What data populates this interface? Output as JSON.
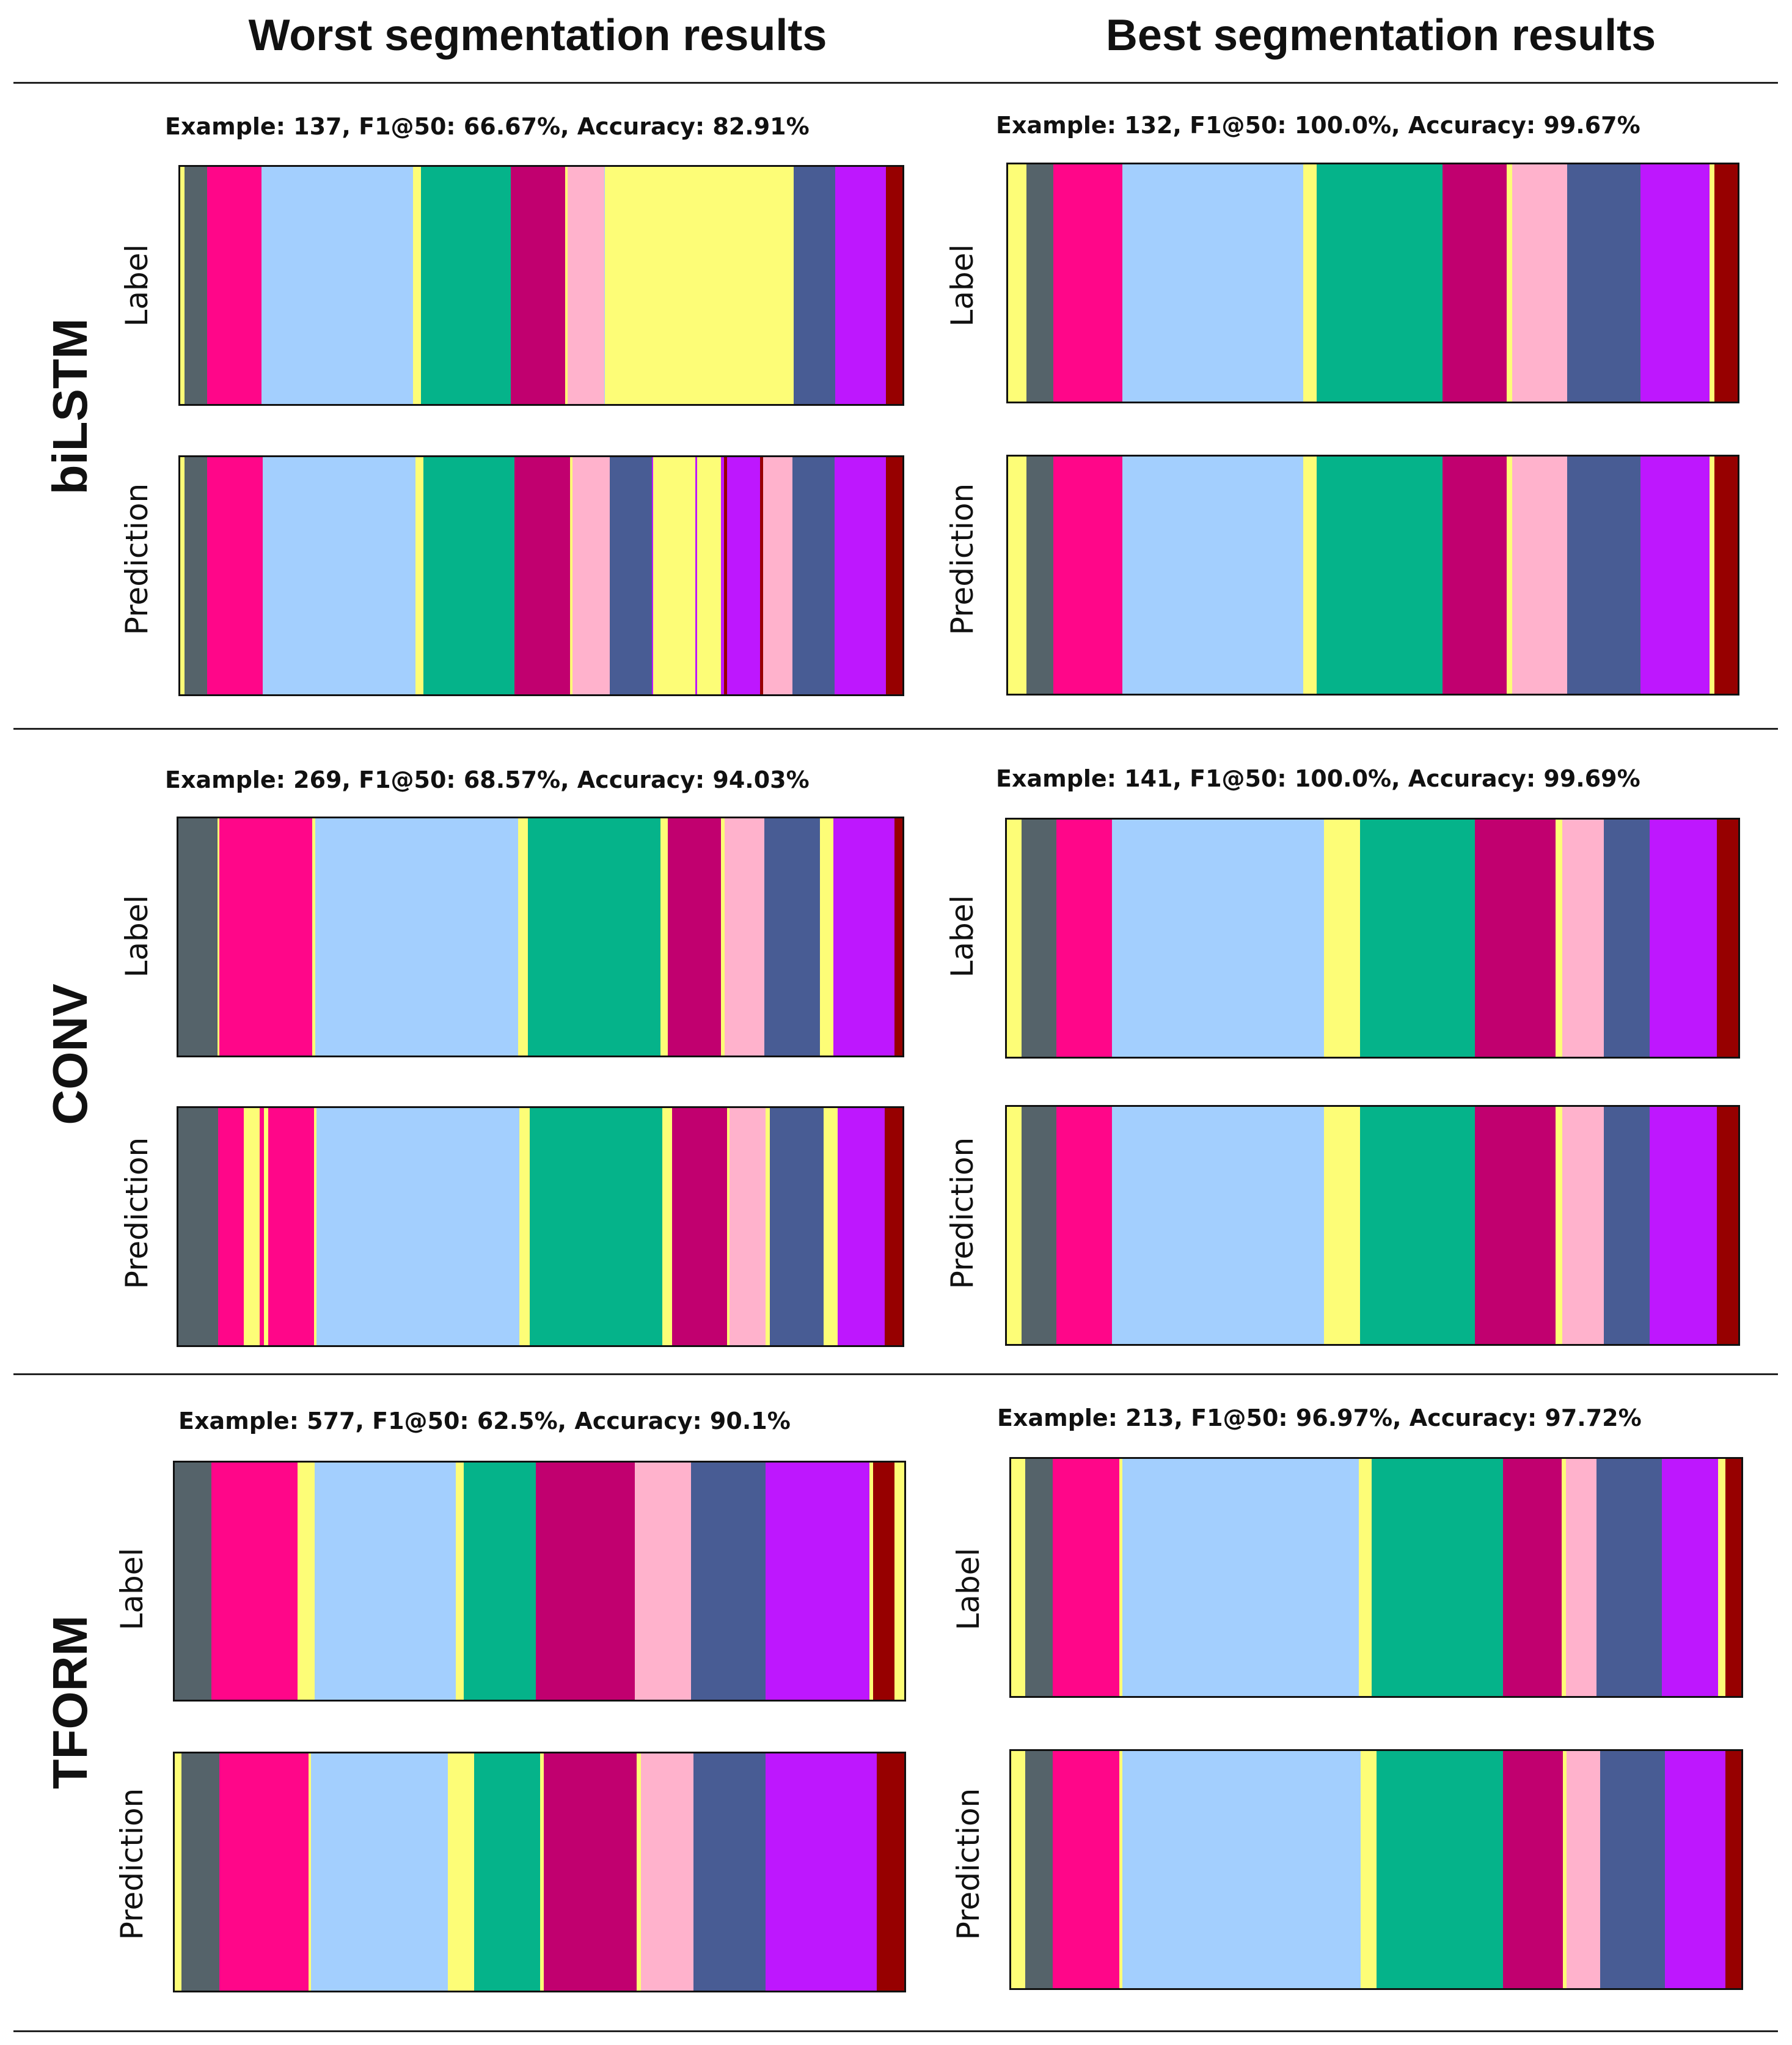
{
  "column_titles": {
    "worst": "Worst segmentation results",
    "best": "Best segmentation results"
  },
  "row_titles": {
    "bilstm": "biLSTM",
    "conv": "CONV",
    "tform": "TFORM"
  },
  "axis_labels": {
    "label": "Label",
    "prediction": "Prediction"
  },
  "colors": {
    "Y": "#fdfd77",
    "G": "#55636a",
    "M": "#ff0689",
    "B": "#a3cffe",
    "T": "#05b38a",
    "R": "#c1006f",
    "P": "#ffb2cc",
    "N": "#485c94",
    "V": "#be17fe",
    "D": "#970000"
  },
  "chart_data": [
    {
      "type": "segmentation",
      "model": "biLSTM",
      "group": "worst",
      "title": "Example: 137, F1@50: 66.67%, Accuracy: 82.91%",
      "example": 137,
      "f1_at_50": 66.67,
      "accuracy": 82.91,
      "label": [
        [
          "Y",
          0.6
        ],
        [
          "G",
          3.1
        ],
        [
          "M",
          7.6
        ],
        [
          "B",
          21
        ],
        [
          "Y",
          1.1
        ],
        [
          "T",
          12.5
        ],
        [
          "R",
          7.6
        ],
        [
          "Y",
          0.3
        ],
        [
          "P",
          5.1
        ],
        [
          "B",
          0.1
        ],
        [
          "Y",
          26.2
        ],
        [
          "N",
          5.8
        ],
        [
          "V",
          7
        ],
        [
          "D",
          2.3
        ]
      ],
      "prediction": [
        [
          "Y",
          0.6
        ],
        [
          "G",
          3.1
        ],
        [
          "M",
          7.6
        ],
        [
          "B",
          21
        ],
        [
          "Y",
          1.1
        ],
        [
          "T",
          12.5
        ],
        [
          "R",
          7.6
        ],
        [
          "Y",
          0.3
        ],
        [
          "P",
          5.1
        ],
        [
          "N",
          5.8
        ],
        [
          "V",
          0.2
        ],
        [
          "Y",
          5.8
        ],
        [
          "V",
          0.2
        ],
        [
          "Y",
          3.3
        ],
        [
          "V",
          0.4
        ],
        [
          "D",
          0.4
        ],
        [
          "V",
          4.6
        ],
        [
          "D",
          0.4
        ],
        [
          "P",
          4
        ],
        [
          "N",
          5.8
        ],
        [
          "V",
          7
        ],
        [
          "D",
          2.3
        ]
      ]
    },
    {
      "type": "segmentation",
      "model": "biLSTM",
      "group": "best",
      "title": "Example: 132, F1@50: 100.0%, Accuracy: 99.67%",
      "example": 132,
      "f1_at_50": 100.0,
      "accuracy": 99.67,
      "label": [
        [
          "Y",
          2.5
        ],
        [
          "G",
          3.7
        ],
        [
          "M",
          9.4
        ],
        [
          "B",
          24.7
        ],
        [
          "Y",
          1.8
        ],
        [
          "T",
          17.2
        ],
        [
          "R",
          8.8
        ],
        [
          "Y",
          0.7
        ],
        [
          "P",
          7.5
        ],
        [
          "N",
          10
        ],
        [
          "V",
          9.5
        ],
        [
          "Y",
          0.6
        ],
        [
          "D",
          3.2
        ]
      ],
      "prediction": [
        [
          "Y",
          2.5
        ],
        [
          "G",
          3.7
        ],
        [
          "M",
          9.4
        ],
        [
          "B",
          24.7
        ],
        [
          "Y",
          1.8
        ],
        [
          "T",
          17.2
        ],
        [
          "R",
          8.8
        ],
        [
          "Y",
          0.7
        ],
        [
          "P",
          7.5
        ],
        [
          "N",
          10
        ],
        [
          "V",
          9.5
        ],
        [
          "Y",
          0.6
        ],
        [
          "D",
          3.2
        ]
      ]
    },
    {
      "type": "segmentation",
      "model": "CONV",
      "group": "worst",
      "title": "Example: 269, F1@50: 68.57%, Accuracy: 94.03%",
      "example": 269,
      "f1_at_50": 68.57,
      "accuracy": 94.03,
      "label": [
        [
          "G",
          5.5
        ],
        [
          "Y",
          0.2
        ],
        [
          "M",
          13
        ],
        [
          "Y",
          0.4
        ],
        [
          "B",
          28.3
        ],
        [
          "Y",
          1.4
        ],
        [
          "T",
          18.5
        ],
        [
          "Y",
          1
        ],
        [
          "R",
          7.5
        ],
        [
          "Y",
          0.5
        ],
        [
          "P",
          5.5
        ],
        [
          "N",
          7.8
        ],
        [
          "Y",
          1.9
        ],
        [
          "V",
          8.5
        ],
        [
          "D",
          1.1
        ]
      ],
      "prediction": [
        [
          "G",
          5.5
        ],
        [
          "M",
          3.6
        ],
        [
          "Y",
          2.2
        ],
        [
          "M",
          0.6
        ],
        [
          "Y",
          0.6
        ],
        [
          "M",
          6.4
        ],
        [
          "Y",
          0.4
        ],
        [
          "B",
          28.3
        ],
        [
          "Y",
          1.4
        ],
        [
          "T",
          18.5
        ],
        [
          "Y",
          1.4
        ],
        [
          "R",
          7.6
        ],
        [
          "Y",
          0.4
        ],
        [
          "P",
          5
        ],
        [
          "Y",
          0.6
        ],
        [
          "N",
          7.5
        ],
        [
          "Y",
          2
        ],
        [
          "V",
          6.5
        ],
        [
          "D",
          2.5
        ]
      ]
    },
    {
      "type": "segmentation",
      "model": "CONV",
      "group": "best",
      "title": "Example: 141, F1@50: 100.0%, Accuracy: 99.69%",
      "example": 141,
      "f1_at_50": 100.0,
      "accuracy": 99.69,
      "label": [
        [
          "Y",
          2
        ],
        [
          "G",
          4.8
        ],
        [
          "M",
          7.6
        ],
        [
          "B",
          29
        ],
        [
          "Y",
          4.9
        ],
        [
          "T",
          15.7
        ],
        [
          "R",
          11
        ],
        [
          "Y",
          0.9
        ],
        [
          "P",
          5.7
        ],
        [
          "N",
          6.3
        ],
        [
          "V",
          9.2
        ],
        [
          "D",
          2.9
        ]
      ],
      "prediction": [
        [
          "Y",
          2
        ],
        [
          "G",
          4.8
        ],
        [
          "M",
          7.6
        ],
        [
          "B",
          29
        ],
        [
          "Y",
          4.9
        ],
        [
          "T",
          15.7
        ],
        [
          "R",
          11
        ],
        [
          "Y",
          0.9
        ],
        [
          "P",
          5.7
        ],
        [
          "N",
          6.3
        ],
        [
          "V",
          9.2
        ],
        [
          "D",
          2.9
        ]
      ]
    },
    {
      "type": "segmentation",
      "model": "TFORM",
      "group": "worst",
      "title": "Example: 577, F1@50: 62.5%, Accuracy: 90.1%",
      "example": 577,
      "f1_at_50": 62.5,
      "accuracy": 90.1,
      "label": [
        [
          "G",
          5
        ],
        [
          "M",
          11.8
        ],
        [
          "Y",
          2.4
        ],
        [
          "B",
          19.3
        ],
        [
          "Y",
          1.1
        ],
        [
          "T",
          9.9
        ],
        [
          "R",
          13.6
        ],
        [
          "P",
          7.7
        ],
        [
          "N",
          10.2
        ],
        [
          "V",
          14.2
        ],
        [
          "Y",
          0.5
        ],
        [
          "D",
          3
        ],
        [
          "Y",
          1.3
        ]
      ],
      "prediction": [
        [
          "Y",
          0.9
        ],
        [
          "G",
          5.2
        ],
        [
          "M",
          12.2
        ],
        [
          "Y",
          0.4
        ],
        [
          "B",
          18.7
        ],
        [
          "Y",
          3.6
        ],
        [
          "T",
          9.1
        ],
        [
          "Y",
          0.5
        ],
        [
          "R",
          12.7
        ],
        [
          "Y",
          0.6
        ],
        [
          "P",
          7.2
        ],
        [
          "N",
          9.9
        ],
        [
          "V",
          15.2
        ],
        [
          "D",
          3.8
        ]
      ]
    },
    {
      "type": "segmentation",
      "model": "TFORM",
      "group": "best",
      "title": "Example: 213, F1@50: 96.97%, Accuracy: 97.72%",
      "example": 213,
      "f1_at_50": 96.97,
      "accuracy": 97.72,
      "label": [
        [
          "Y",
          1.9
        ],
        [
          "G",
          3.8
        ],
        [
          "M",
          9.1
        ],
        [
          "Y",
          0.4
        ],
        [
          "B",
          32.4
        ],
        [
          "Y",
          1.8
        ],
        [
          "T",
          18
        ],
        [
          "R",
          8
        ],
        [
          "Y",
          0.6
        ],
        [
          "P",
          4.2
        ],
        [
          "N",
          8.9
        ],
        [
          "V",
          7.7
        ],
        [
          "Y",
          1
        ],
        [
          "D",
          2.2
        ]
      ],
      "prediction": [
        [
          "Y",
          1.9
        ],
        [
          "G",
          3.8
        ],
        [
          "M",
          9.1
        ],
        [
          "Y",
          0.4
        ],
        [
          "B",
          32.7
        ],
        [
          "Y",
          2.1
        ],
        [
          "T",
          17.4
        ],
        [
          "R",
          8.2
        ],
        [
          "Y",
          0.5
        ],
        [
          "P",
          4.6
        ],
        [
          "N",
          8.8
        ],
        [
          "V",
          8.3
        ],
        [
          "D",
          2.2
        ]
      ]
    }
  ]
}
